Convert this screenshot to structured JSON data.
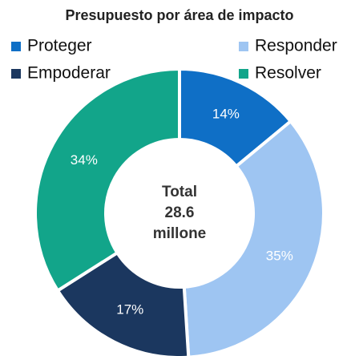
{
  "chart_data": {
    "type": "donut",
    "title": "Presupuesto por área de impacto",
    "categories": [
      "Proteger",
      "Responder",
      "Empoderar",
      "Resolver"
    ],
    "values": [
      14,
      35,
      17,
      34
    ],
    "value_labels": [
      "14%",
      "35%",
      "17%",
      "34%"
    ],
    "colors": [
      "#0f6fc6",
      "#9ec5f2",
      "#1b375f",
      "#12a58a"
    ],
    "center_label": [
      "Total",
      "28.6",
      "millone"
    ],
    "legend": "top"
  }
}
